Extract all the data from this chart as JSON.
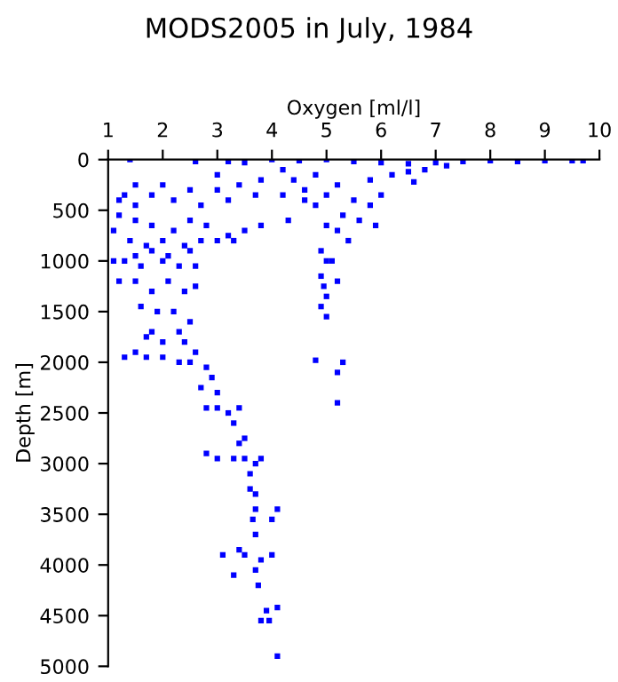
{
  "chart_data": {
    "type": "scatter",
    "title": "MODS2005 in July, 1984",
    "xlabel": "Oxygen [ml/l]",
    "ylabel": "Depth [m]",
    "xlim": [
      1,
      10
    ],
    "xticks": [
      1,
      2,
      3,
      4,
      5,
      6,
      7,
      8,
      9,
      10
    ],
    "ylim": [
      5000,
      0
    ],
    "yticks": [
      0,
      500,
      1000,
      1500,
      2000,
      2500,
      3000,
      3500,
      4000,
      4500,
      5000
    ],
    "marker": "square",
    "grid": false,
    "legend": false,
    "series": [
      {
        "color": "#0000ff",
        "x": [
          1.4,
          2.6,
          3.2,
          3.5,
          4,
          4.5,
          5,
          5.5,
          6,
          6.5,
          7,
          7.5,
          8,
          8.5,
          9,
          9.5,
          9.7,
          7.2,
          6.8,
          6.2,
          5.8,
          6.5,
          6.6,
          4.2,
          4.8,
          5.2,
          3.8,
          3.4,
          3.0,
          2.5,
          2.0,
          1.5,
          1.3,
          1.2,
          1.5,
          1.8,
          2.2,
          2.7,
          3.2,
          3.7,
          4.2,
          4.6,
          5.0,
          5.5,
          5.8,
          6.0,
          4.8,
          5.3,
          5.6,
          5.9,
          5.2,
          5.4,
          5.0,
          4.3,
          3.8,
          3.5,
          3.2,
          2.8,
          2.5,
          2.2,
          1.8,
          1.5,
          1.2,
          1.1,
          1.4,
          1.7,
          2.0,
          2.4,
          2.7,
          3.0,
          3.3,
          2.5,
          2.1,
          1.8,
          1.5,
          1.3,
          1.1,
          1.6,
          2.0,
          2.3,
          2.6,
          1.2,
          1.5,
          1.8,
          2.1,
          2.4,
          2.6,
          1.6,
          1.9,
          2.2,
          2.5,
          1.8,
          2.3,
          4.9,
          5.0,
          5.1,
          4.9,
          4.95,
          5.2,
          5.0,
          5.0,
          4.9,
          1.7,
          2.0,
          2.4,
          2.6,
          1.3,
          1.5,
          1.7,
          2.0,
          2.3,
          2.5,
          2.8,
          2.9,
          2.7,
          3.0,
          2.8,
          3.0,
          3.2,
          3.4,
          3.3,
          3.5,
          3.4,
          2.8,
          3.0,
          3.3,
          3.5,
          3.7,
          3.8,
          3.6,
          3.6,
          3.7,
          3.7,
          3.65,
          3.7,
          4.1,
          4.0,
          3.1,
          3.4,
          3.5,
          3.8,
          4.0,
          3.7,
          3.75,
          3.8,
          3.9,
          4.1,
          3.95,
          4.1,
          4.8,
          5.3,
          5.2,
          5.2,
          3.3,
          4.6,
          4.4,
          3.0
        ],
        "values": [
          0,
          20,
          20,
          30,
          0,
          10,
          0,
          20,
          30,
          40,
          30,
          20,
          10,
          20,
          10,
          10,
          10,
          60,
          100,
          150,
          200,
          120,
          220,
          100,
          150,
          250,
          200,
          250,
          300,
          300,
          250,
          250,
          350,
          400,
          450,
          350,
          400,
          450,
          400,
          350,
          350,
          400,
          350,
          400,
          450,
          350,
          450,
          550,
          600,
          650,
          700,
          800,
          650,
          600,
          650,
          700,
          750,
          650,
          600,
          700,
          650,
          600,
          550,
          700,
          800,
          850,
          800,
          850,
          800,
          800,
          800,
          900,
          950,
          900,
          950,
          1000,
          1000,
          1050,
          1000,
          1050,
          1050,
          1200,
          1200,
          1300,
          1200,
          1300,
          1250,
          1450,
          1500,
          1500,
          1600,
          1700,
          1700,
          900,
          1000,
          1000,
          1150,
          1250,
          1200,
          1350,
          1550,
          1450,
          1750,
          1800,
          1800,
          1900,
          1950,
          1900,
          1950,
          1950,
          2000,
          2000,
          2050,
          2150,
          2250,
          2300,
          2450,
          2450,
          2500,
          2450,
          2600,
          2750,
          2800,
          2900,
          2950,
          2950,
          2950,
          3000,
          2950,
          3100,
          3250,
          3300,
          3450,
          3550,
          3700,
          3450,
          3550,
          3900,
          3850,
          3900,
          3950,
          3900,
          4050,
          4200,
          4550,
          4450,
          4420,
          4550,
          4900,
          1980,
          2000,
          2100,
          2400,
          4100,
          300,
          200,
          150
        ]
      }
    ]
  }
}
